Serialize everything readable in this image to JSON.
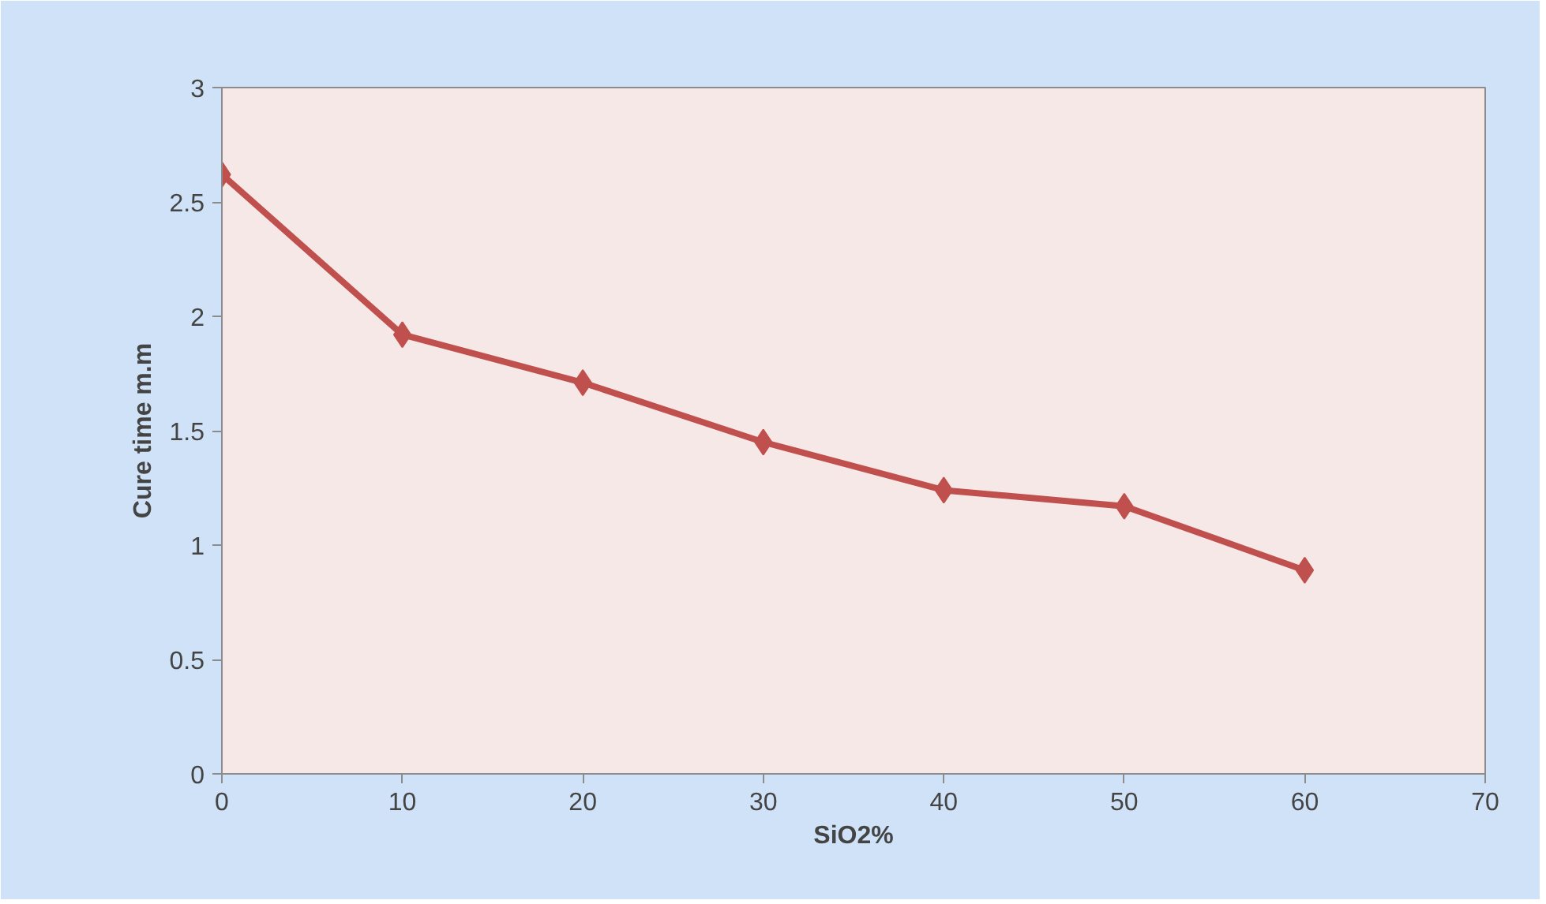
{
  "chart_data": {
    "type": "line",
    "xlabel": "SiO2%",
    "ylabel": "Cure time m.m",
    "x": [
      0,
      10,
      20,
      30,
      40,
      50,
      60
    ],
    "series": [
      {
        "color": "#c0504d",
        "values": [
          2.62,
          1.92,
          1.71,
          1.45,
          1.24,
          1.17,
          0.89
        ]
      }
    ],
    "xlim": [
      0,
      70
    ],
    "xticks": [
      0,
      10,
      20,
      30,
      40,
      50,
      60,
      70
    ],
    "ylim": [
      0,
      3
    ],
    "yticks": [
      0,
      0.5,
      1,
      1.5,
      2,
      2.5,
      3
    ],
    "grid": false,
    "marker": "diamond",
    "line_style": "solid"
  }
}
